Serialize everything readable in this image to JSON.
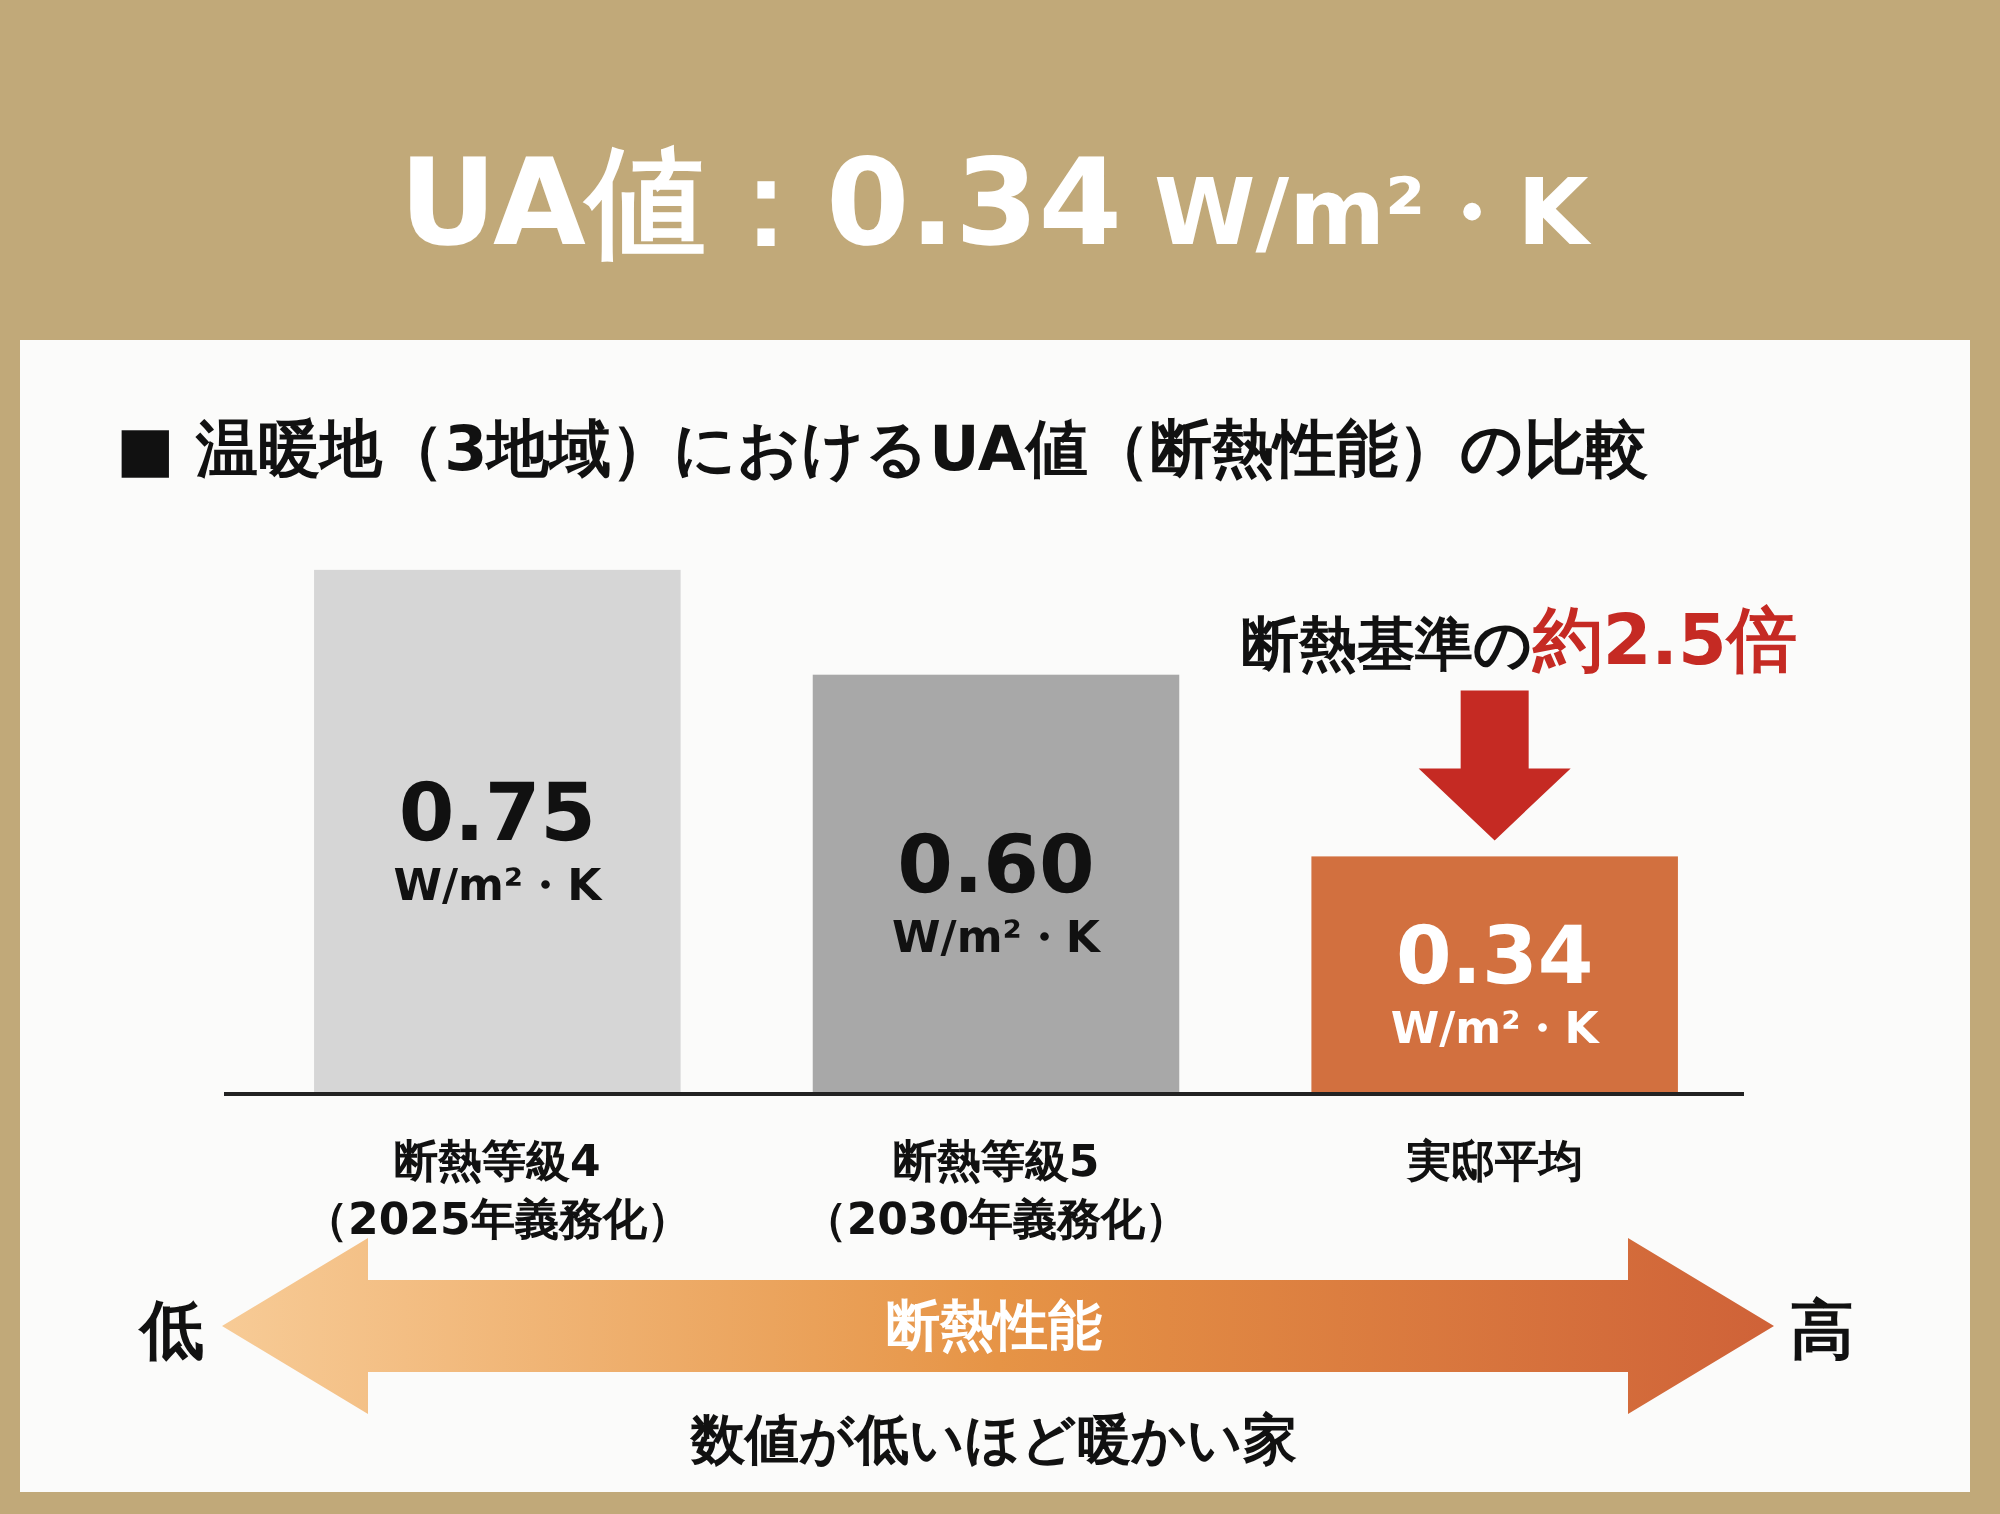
{
  "chart_data": {
    "type": "bar",
    "title": "UA値：0.34 W/m²・K",
    "subtitle": "■ 温暖地（3地域）におけるUA値（断熱性能）の比較",
    "categories": [
      "断熱等級4\n（2025年義務化）",
      "断熱等級5\n（2030年義務化）",
      "実邸平均"
    ],
    "values": [
      0.75,
      0.6,
      0.34
    ],
    "colors": [
      "#d6d6d6",
      "#a8a8a8",
      "#d2703f"
    ],
    "value_labels": [
      "0.75\nW/m²・K",
      "0.60\nW/m²・K",
      "0.34\nW/m²・K"
    ],
    "annotations": [
      {
        "text": "断熱基準の約2.5倍",
        "x": "実邸平均",
        "y": 0.34
      },
      "低",
      "断熱性能",
      "高",
      "数値が低いほど暖かい家"
    ]
  }
}
